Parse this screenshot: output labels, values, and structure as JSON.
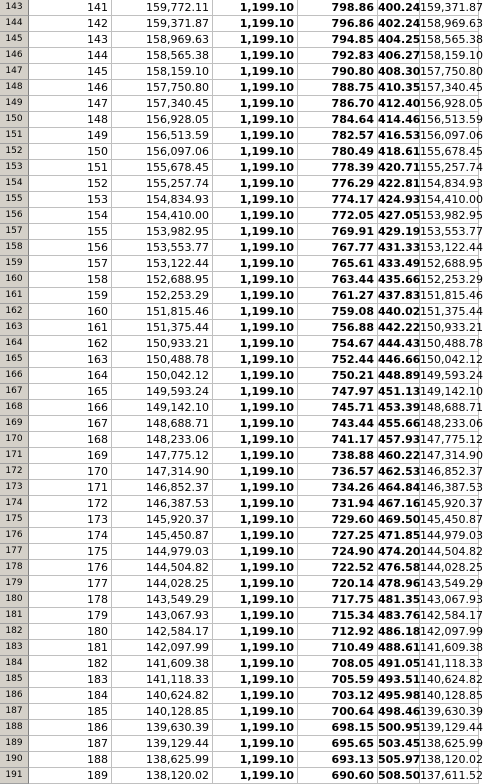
{
  "rows": [
    {
      "row": "143",
      "period": "141",
      "begin": "159,772.11",
      "payment": "1,199.10",
      "interest": "798.86",
      "principal": "400.24",
      "end": "159,371.87"
    },
    {
      "row": "144",
      "period": "142",
      "begin": "159,371.87",
      "payment": "1,199.10",
      "interest": "796.86",
      "principal": "402.24",
      "end": "158,969.63"
    },
    {
      "row": "145",
      "period": "143",
      "begin": "158,969.63",
      "payment": "1,199.10",
      "interest": "794.85",
      "principal": "404.25",
      "end": "158,565.38"
    },
    {
      "row": "146",
      "period": "144",
      "begin": "158,565.38",
      "payment": "1,199.10",
      "interest": "792.83",
      "principal": "406.27",
      "end": "158,159.10"
    },
    {
      "row": "147",
      "period": "145",
      "begin": "158,159.10",
      "payment": "1,199.10",
      "interest": "790.80",
      "principal": "408.30",
      "end": "157,750.80"
    },
    {
      "row": "148",
      "period": "146",
      "begin": "157,750.80",
      "payment": "1,199.10",
      "interest": "788.75",
      "principal": "410.35",
      "end": "157,340.45"
    },
    {
      "row": "149",
      "period": "147",
      "begin": "157,340.45",
      "payment": "1,199.10",
      "interest": "786.70",
      "principal": "412.40",
      "end": "156,928.05"
    },
    {
      "row": "150",
      "period": "148",
      "begin": "156,928.05",
      "payment": "1,199.10",
      "interest": "784.64",
      "principal": "414.46",
      "end": "156,513.59"
    },
    {
      "row": "151",
      "period": "149",
      "begin": "156,513.59",
      "payment": "1,199.10",
      "interest": "782.57",
      "principal": "416.53",
      "end": "156,097.06"
    },
    {
      "row": "152",
      "period": "150",
      "begin": "156,097.06",
      "payment": "1,199.10",
      "interest": "780.49",
      "principal": "418.61",
      "end": "155,678.45"
    },
    {
      "row": "153",
      "period": "151",
      "begin": "155,678.45",
      "payment": "1,199.10",
      "interest": "778.39",
      "principal": "420.71",
      "end": "155,257.74"
    },
    {
      "row": "154",
      "period": "152",
      "begin": "155,257.74",
      "payment": "1,199.10",
      "interest": "776.29",
      "principal": "422.81",
      "end": "154,834.93"
    },
    {
      "row": "155",
      "period": "153",
      "begin": "154,834.93",
      "payment": "1,199.10",
      "interest": "774.17",
      "principal": "424.93",
      "end": "154,410.00"
    },
    {
      "row": "156",
      "period": "154",
      "begin": "154,410.00",
      "payment": "1,199.10",
      "interest": "772.05",
      "principal": "427.05",
      "end": "153,982.95"
    },
    {
      "row": "157",
      "period": "155",
      "begin": "153,982.95",
      "payment": "1,199.10",
      "interest": "769.91",
      "principal": "429.19",
      "end": "153,553.77"
    },
    {
      "row": "158",
      "period": "156",
      "begin": "153,553.77",
      "payment": "1,199.10",
      "interest": "767.77",
      "principal": "431.33",
      "end": "153,122.44"
    },
    {
      "row": "159",
      "period": "157",
      "begin": "153,122.44",
      "payment": "1,199.10",
      "interest": "765.61",
      "principal": "433.49",
      "end": "152,688.95"
    },
    {
      "row": "160",
      "period": "158",
      "begin": "152,688.95",
      "payment": "1,199.10",
      "interest": "763.44",
      "principal": "435.66",
      "end": "152,253.29"
    },
    {
      "row": "161",
      "period": "159",
      "begin": "152,253.29",
      "payment": "1,199.10",
      "interest": "761.27",
      "principal": "437.83",
      "end": "151,815.46"
    },
    {
      "row": "162",
      "period": "160",
      "begin": "151,815.46",
      "payment": "1,199.10",
      "interest": "759.08",
      "principal": "440.02",
      "end": "151,375.44"
    },
    {
      "row": "163",
      "period": "161",
      "begin": "151,375.44",
      "payment": "1,199.10",
      "interest": "756.88",
      "principal": "442.22",
      "end": "150,933.21"
    },
    {
      "row": "164",
      "period": "162",
      "begin": "150,933.21",
      "payment": "1,199.10",
      "interest": "754.67",
      "principal": "444.43",
      "end": "150,488.78"
    },
    {
      "row": "165",
      "period": "163",
      "begin": "150,488.78",
      "payment": "1,199.10",
      "interest": "752.44",
      "principal": "446.66",
      "end": "150,042.12"
    },
    {
      "row": "166",
      "period": "164",
      "begin": "150,042.12",
      "payment": "1,199.10",
      "interest": "750.21",
      "principal": "448.89",
      "end": "149,593.24"
    },
    {
      "row": "167",
      "period": "165",
      "begin": "149,593.24",
      "payment": "1,199.10",
      "interest": "747.97",
      "principal": "451.13",
      "end": "149,142.10"
    },
    {
      "row": "168",
      "period": "166",
      "begin": "149,142.10",
      "payment": "1,199.10",
      "interest": "745.71",
      "principal": "453.39",
      "end": "148,688.71"
    },
    {
      "row": "169",
      "period": "167",
      "begin": "148,688.71",
      "payment": "1,199.10",
      "interest": "743.44",
      "principal": "455.66",
      "end": "148,233.06"
    },
    {
      "row": "170",
      "period": "168",
      "begin": "148,233.06",
      "payment": "1,199.10",
      "interest": "741.17",
      "principal": "457.93",
      "end": "147,775.12"
    },
    {
      "row": "171",
      "period": "169",
      "begin": "147,775.12",
      "payment": "1,199.10",
      "interest": "738.88",
      "principal": "460.22",
      "end": "147,314.90"
    },
    {
      "row": "172",
      "period": "170",
      "begin": "147,314.90",
      "payment": "1,199.10",
      "interest": "736.57",
      "principal": "462.53",
      "end": "146,852.37"
    },
    {
      "row": "173",
      "period": "171",
      "begin": "146,852.37",
      "payment": "1,199.10",
      "interest": "734.26",
      "principal": "464.84",
      "end": "146,387.53"
    },
    {
      "row": "174",
      "period": "172",
      "begin": "146,387.53",
      "payment": "1,199.10",
      "interest": "731.94",
      "principal": "467.16",
      "end": "145,920.37"
    },
    {
      "row": "175",
      "period": "173",
      "begin": "145,920.37",
      "payment": "1,199.10",
      "interest": "729.60",
      "principal": "469.50",
      "end": "145,450.87"
    },
    {
      "row": "176",
      "period": "174",
      "begin": "145,450.87",
      "payment": "1,199.10",
      "interest": "727.25",
      "principal": "471.85",
      "end": "144,979.03"
    },
    {
      "row": "177",
      "period": "175",
      "begin": "144,979.03",
      "payment": "1,199.10",
      "interest": "724.90",
      "principal": "474.20",
      "end": "144,504.82"
    },
    {
      "row": "178",
      "period": "176",
      "begin": "144,504.82",
      "payment": "1,199.10",
      "interest": "722.52",
      "principal": "476.58",
      "end": "144,028.25"
    },
    {
      "row": "179",
      "period": "177",
      "begin": "144,028.25",
      "payment": "1,199.10",
      "interest": "720.14",
      "principal": "478.96",
      "end": "143,549.29"
    },
    {
      "row": "180",
      "period": "178",
      "begin": "143,549.29",
      "payment": "1,199.10",
      "interest": "717.75",
      "principal": "481.35",
      "end": "143,067.93"
    },
    {
      "row": "181",
      "period": "179",
      "begin": "143,067.93",
      "payment": "1,199.10",
      "interest": "715.34",
      "principal": "483.76",
      "end": "142,584.17"
    },
    {
      "row": "182",
      "period": "180",
      "begin": "142,584.17",
      "payment": "1,199.10",
      "interest": "712.92",
      "principal": "486.18",
      "end": "142,097.99"
    },
    {
      "row": "183",
      "period": "181",
      "begin": "142,097.99",
      "payment": "1,199.10",
      "interest": "710.49",
      "principal": "488.61",
      "end": "141,609.38"
    },
    {
      "row": "184",
      "period": "182",
      "begin": "141,609.38",
      "payment": "1,199.10",
      "interest": "708.05",
      "principal": "491.05",
      "end": "141,118.33"
    },
    {
      "row": "185",
      "period": "183",
      "begin": "141,118.33",
      "payment": "1,199.10",
      "interest": "705.59",
      "principal": "493.51",
      "end": "140,624.82"
    },
    {
      "row": "186",
      "period": "184",
      "begin": "140,624.82",
      "payment": "1,199.10",
      "interest": "703.12",
      "principal": "495.98",
      "end": "140,128.85"
    },
    {
      "row": "187",
      "period": "185",
      "begin": "140,128.85",
      "payment": "1,199.10",
      "interest": "700.64",
      "principal": "498.46",
      "end": "139,630.39"
    },
    {
      "row": "188",
      "period": "186",
      "begin": "139,630.39",
      "payment": "1,199.10",
      "interest": "698.15",
      "principal": "500.95",
      "end": "139,129.44"
    },
    {
      "row": "189",
      "period": "187",
      "begin": "139,129.44",
      "payment": "1,199.10",
      "interest": "695.65",
      "principal": "503.45",
      "end": "138,625.99"
    },
    {
      "row": "190",
      "period": "188",
      "begin": "138,625.99",
      "payment": "1,199.10",
      "interest": "693.13",
      "principal": "505.97",
      "end": "138,120.02"
    },
    {
      "row": "191",
      "period": "189",
      "begin": "138,120.02",
      "payment": "1,199.10",
      "interest": "690.60",
      "principal": "508.50",
      "end": "137,611.52"
    }
  ]
}
